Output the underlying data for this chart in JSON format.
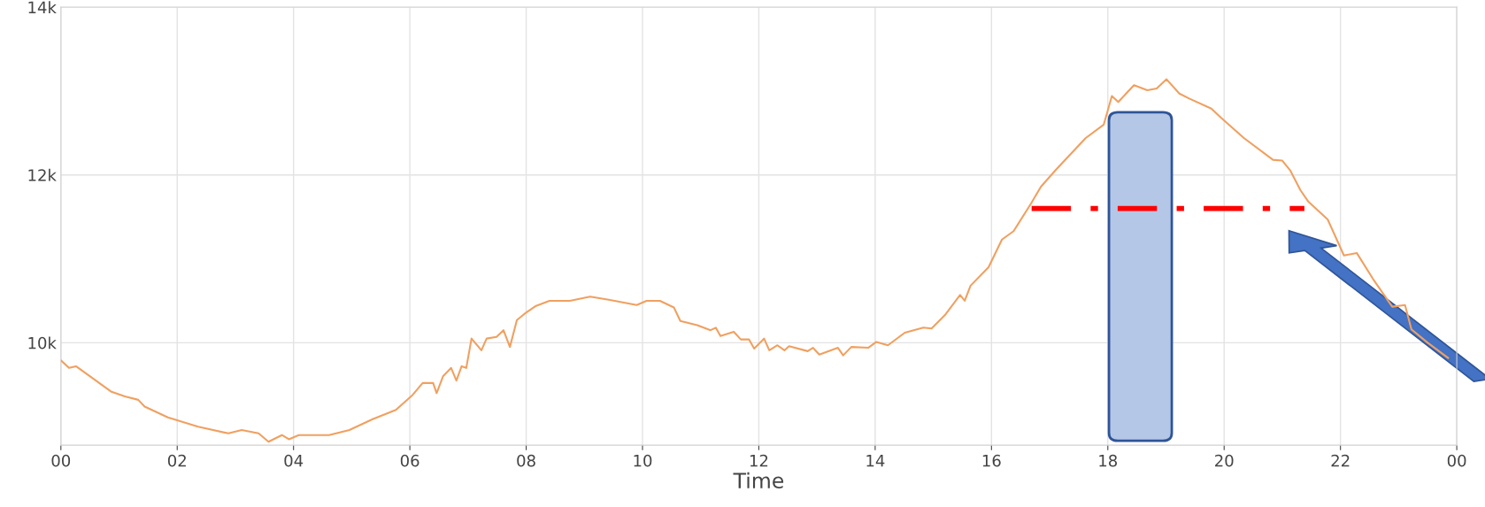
{
  "chart_data": {
    "type": "line",
    "xlabel": "Time",
    "xlim": [
      0,
      24
    ],
    "xticks": [
      {
        "value": 0,
        "label": "00"
      },
      {
        "value": 2,
        "label": "02"
      },
      {
        "value": 4,
        "label": "04"
      },
      {
        "value": 6,
        "label": "06"
      },
      {
        "value": 8,
        "label": "08"
      },
      {
        "value": 10,
        "label": "10"
      },
      {
        "value": 12,
        "label": "12"
      },
      {
        "value": 14,
        "label": "14"
      },
      {
        "value": 16,
        "label": "16"
      },
      {
        "value": 18,
        "label": "18"
      },
      {
        "value": 20,
        "label": "20"
      },
      {
        "value": 22,
        "label": "22"
      },
      {
        "value": 24,
        "label": "00"
      }
    ],
    "ylim": [
      8780,
      14000
    ],
    "yticks": [
      {
        "value": 10000,
        "label": "10k"
      },
      {
        "value": 12000,
        "label": "12k"
      },
      {
        "value": 14000,
        "label": "14k"
      }
    ],
    "grid": true,
    "bands": [
      {
        "axis": "x",
        "from": 18.02,
        "to": 19.1,
        "color": "#b4c7e7"
      }
    ],
    "series": [
      {
        "color": "#f0a060",
        "line_style": "solid",
        "x": [
          0,
          0.14,
          0.26,
          0.46,
          0.86,
          1.1,
          1.33,
          1.44,
          1.84,
          2.36,
          2.88,
          3.11,
          3.4,
          3.57,
          3.8,
          3.92,
          4.09,
          4.61,
          4.96,
          5.36,
          5.76,
          6.05,
          6.22,
          6.4,
          6.46,
          6.57,
          6.71,
          6.8,
          6.89,
          6.97,
          7.06,
          7.23,
          7.32,
          7.49,
          7.61,
          7.72,
          7.84,
          7.98,
          8.17,
          8.4,
          8.75,
          9.1,
          9.44,
          9.9,
          10.07,
          10.3,
          10.54,
          10.65,
          10.94,
          11.17,
          11.26,
          11.34,
          11.57,
          11.69,
          11.83,
          11.92,
          12.09,
          12.18,
          12.32,
          12.44,
          12.52,
          12.84,
          12.93,
          13.04,
          13.36,
          13.45,
          13.59,
          13.88,
          14.02,
          14.22,
          14.51,
          14.83,
          14.97,
          15.2,
          15.46,
          15.54,
          15.64,
          15.95,
          16.18,
          16.38,
          16.68,
          16.85,
          17.12,
          17.62,
          17.93,
          18.07,
          18.18,
          18.45,
          18.68,
          18.84,
          19.01,
          19.23,
          19.4,
          19.78,
          19.95,
          20.34,
          20.84,
          21.0,
          21.14,
          21.31,
          21.45,
          21.78,
          22.06,
          22.28,
          22.56,
          22.89,
          23.11,
          23.22,
          23.5,
          23.85
        ],
        "values": [
          9790,
          9700,
          9720,
          9620,
          9420,
          9360,
          9320,
          9240,
          9110,
          9000,
          8920,
          8960,
          8920,
          8820,
          8900,
          8850,
          8900,
          8900,
          8960,
          9090,
          9200,
          9380,
          9520,
          9520,
          9400,
          9600,
          9700,
          9550,
          9720,
          9700,
          10050,
          9910,
          10050,
          10070,
          10150,
          9950,
          10270,
          10350,
          10440,
          10500,
          10500,
          10550,
          10510,
          10450,
          10500,
          10500,
          10420,
          10260,
          10210,
          10150,
          10180,
          10080,
          10130,
          10040,
          10040,
          9930,
          10050,
          9910,
          9970,
          9910,
          9960,
          9900,
          9940,
          9860,
          9940,
          9850,
          9950,
          9940,
          10010,
          9970,
          10120,
          10180,
          10170,
          10330,
          10570,
          10500,
          10680,
          10900,
          11230,
          11330,
          11660,
          11860,
          12070,
          12440,
          12600,
          12940,
          12870,
          13070,
          13010,
          13030,
          13140,
          12970,
          12910,
          12790,
          12680,
          12440,
          12180,
          12170,
          12050,
          11820,
          11680,
          11470,
          11040,
          11070,
          10760,
          10430,
          10450,
          10160,
          10000,
          9820
        ]
      },
      {
        "type": "line",
        "color": "#ff0000",
        "line_style": "dashdot",
        "x": [
          16.69,
          21.38
        ],
        "values": [
          11600,
          11600
        ]
      }
    ]
  }
}
